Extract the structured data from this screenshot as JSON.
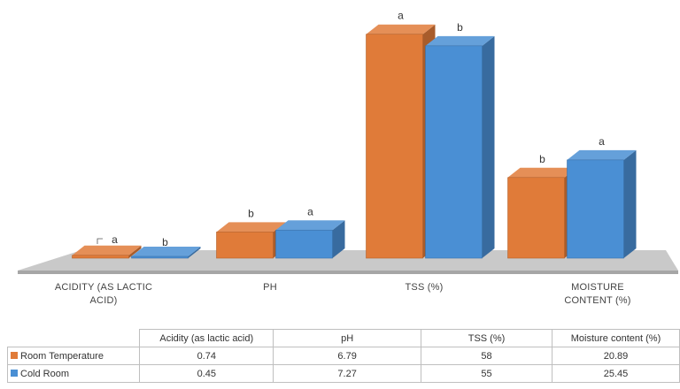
{
  "chart_data": {
    "type": "bar",
    "categories": [
      "ACIDITY (AS LACTIC ACID)",
      "PH",
      "TSS (%)",
      "MOISTURE CONTENT (%)"
    ],
    "category_label_lines": [
      [
        "ACIDITY (AS LACTIC",
        "ACID)"
      ],
      [
        "PH"
      ],
      [
        "TSS (%)"
      ],
      [
        "MOISTURE",
        "CONTENT (%)"
      ]
    ],
    "series": [
      {
        "name": "Room Temperature",
        "values": [
          0.74,
          6.79,
          58,
          20.89
        ],
        "color": "#e07b39",
        "letters": [
          "a",
          "b",
          "a",
          "b"
        ]
      },
      {
        "name": "Cold Room",
        "values": [
          0.45,
          7.27,
          55,
          25.45
        ],
        "color": "#4a8fd4",
        "letters": [
          "b",
          "a",
          "b",
          "a"
        ]
      }
    ],
    "title": "",
    "xlabel": "",
    "ylabel": "",
    "ylim": [
      0,
      60
    ],
    "grid": false,
    "style": "3d-column",
    "table": {
      "headers": [
        "Acidity (as lactic acid)",
        "pH",
        "TSS (%)",
        "Moisture content (%)"
      ],
      "rows": [
        {
          "name": "Room Temperature",
          "values": [
            "0.74",
            "6.79",
            "58",
            "20.89"
          ]
        },
        {
          "name": "Cold Room",
          "values": [
            "0.45",
            "7.27",
            "55",
            "25.45"
          ]
        }
      ]
    }
  }
}
